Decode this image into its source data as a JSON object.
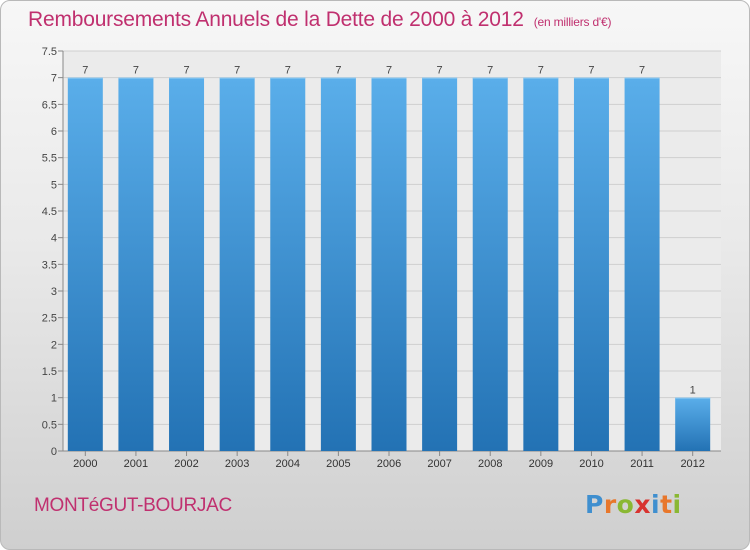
{
  "title": "Remboursements Annuels de la Dette de 2000 à 2012",
  "unit": "(en milliers d'€)",
  "commune": "MONTéGUT-BOURJAC",
  "logo": {
    "text": "Proxiti",
    "letters": [
      {
        "ch": "P",
        "color": "#3f8fcf"
      },
      {
        "ch": "r",
        "color": "#e8772b"
      },
      {
        "ch": "o",
        "color": "#8ab833"
      },
      {
        "ch": "x",
        "color": "#d8332f"
      },
      {
        "ch": "i",
        "color": "#3f8fcf"
      },
      {
        "ch": "t",
        "color": "#e8772b"
      },
      {
        "ch": "i",
        "color": "#8ab833"
      }
    ]
  },
  "colors": {
    "title": "#c0306f",
    "bar_top": "#5aaeea",
    "bar_bottom": "#2372b4",
    "grid": "#cfcfcf"
  },
  "chart_data": {
    "type": "bar",
    "categories": [
      "2000",
      "2001",
      "2002",
      "2003",
      "2004",
      "2005",
      "2006",
      "2007",
      "2008",
      "2009",
      "2010",
      "2011",
      "2012"
    ],
    "values": [
      7,
      7,
      7,
      7,
      7,
      7,
      7,
      7,
      7,
      7,
      7,
      7,
      1
    ],
    "ylim": [
      0,
      7.5
    ],
    "yticks": [
      "0",
      "0.5",
      "1",
      "1.5",
      "2",
      "2.5",
      "3",
      "3.5",
      "4",
      "4.5",
      "5",
      "5.5",
      "6",
      "6.5",
      "7",
      "7.5"
    ],
    "grid": true
  }
}
